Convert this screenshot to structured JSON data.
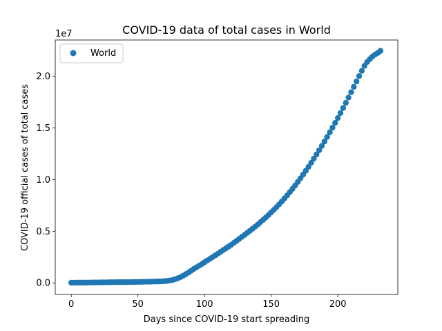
{
  "chart_data": {
    "type": "scatter",
    "title": "COVID-19 data of total cases in World",
    "xlabel": "Days since COVID-19 start spreading",
    "ylabel": "COVID-19 official cases of total cases",
    "offset_label": "1e7",
    "xlim": [
      -12,
      245
    ],
    "ylim": [
      -1120000,
      23500000
    ],
    "x_ticks": [
      0,
      50,
      100,
      150,
      200
    ],
    "x_tick_labels": [
      "0",
      "50",
      "100",
      "150",
      "200"
    ],
    "y_ticks": [
      0,
      5000000,
      10000000,
      15000000,
      20000000
    ],
    "y_tick_labels": [
      "0.0",
      "0.5",
      "1.0",
      "1.5",
      "2.0"
    ],
    "grid": false,
    "legend_position": "upper-left",
    "series": [
      {
        "name": "World",
        "color": "#1f77b4",
        "marker": "circle",
        "x": [
          0,
          2,
          4,
          6,
          8,
          10,
          12,
          14,
          16,
          18,
          20,
          22,
          24,
          26,
          28,
          30,
          32,
          34,
          36,
          38,
          40,
          42,
          44,
          46,
          48,
          50,
          52,
          54,
          56,
          58,
          60,
          62,
          64,
          66,
          68,
          70,
          72,
          74,
          76,
          78,
          80,
          82,
          84,
          86,
          88,
          90,
          92,
          94,
          96,
          98,
          100,
          102,
          104,
          106,
          108,
          110,
          112,
          114,
          116,
          118,
          120,
          122,
          124,
          126,
          128,
          130,
          132,
          134,
          136,
          138,
          140,
          142,
          144,
          146,
          148,
          150,
          152,
          154,
          156,
          158,
          160,
          162,
          164,
          166,
          168,
          170,
          172,
          174,
          176,
          178,
          180,
          182,
          184,
          186,
          188,
          190,
          192,
          194,
          196,
          198,
          200,
          202,
          204,
          206,
          208,
          210,
          212,
          214,
          216,
          218,
          220,
          222,
          224,
          226,
          228,
          230,
          232
        ],
        "y": [
          20000,
          20000,
          21000,
          22000,
          23000,
          25000,
          27000,
          30000,
          35000,
          40000,
          43000,
          45000,
          48000,
          55000,
          60000,
          65000,
          68000,
          70000,
          72000,
          73000,
          75000,
          76000,
          77000,
          80000,
          83000,
          90000,
          95000,
          100000,
          110000,
          115000,
          120000,
          125000,
          130000,
          140000,
          150000,
          170000,
          190000,
          230000,
          280000,
          360000,
          450000,
          560000,
          690000,
          850000,
          1000000,
          1180000,
          1350000,
          1510000,
          1670000,
          1820000,
          2000000,
          2160000,
          2320000,
          2490000,
          2660000,
          2820000,
          3000000,
          3170000,
          3340000,
          3510000,
          3680000,
          3870000,
          4060000,
          4260000,
          4450000,
          4640000,
          4840000,
          5040000,
          5240000,
          5440000,
          5650000,
          5880000,
          6100000,
          6330000,
          6570000,
          6820000,
          7070000,
          7330000,
          7600000,
          7880000,
          8170000,
          8470000,
          8780000,
          9100000,
          9430000,
          9770000,
          10120000,
          10480000,
          10850000,
          11230000,
          11620000,
          12020000,
          12420000,
          12830000,
          13250000,
          13680000,
          14120000,
          14570000,
          15020000,
          15480000,
          15950000,
          16430000,
          16920000,
          17420000,
          17930000,
          18450000,
          18970000,
          19490000,
          20010000,
          20520000,
          21000000,
          21370000,
          21650000,
          21900000,
          22100000,
          22250000,
          22450000
        ]
      }
    ]
  }
}
